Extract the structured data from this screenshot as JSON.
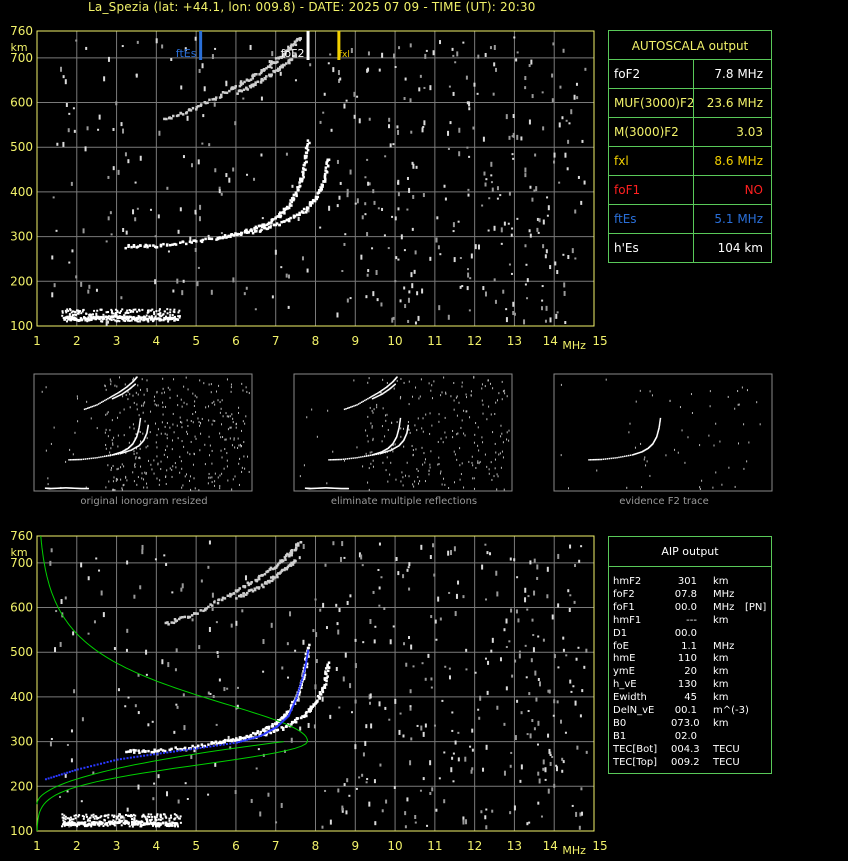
{
  "title": "La_Spezia (lat: +44.1, lon: 009.8) - DATE: 2025 07 09 - TIME (UT): 20:30",
  "colors": {
    "axis": "#f2f26a",
    "grid": "#7a7a7a",
    "box": "#59c959",
    "fte": "#2a6fd8",
    "fof2_marker": "#ffffff",
    "fxl": "#f2d000",
    "fof1": "#ff2020",
    "profile": "#00d000",
    "trace_fit": "#2a38ff"
  },
  "axis_labels": {
    "km": "km",
    "mhz": "MHz"
  },
  "chart_data": [
    {
      "type": "scatter",
      "name": "ionogram",
      "x_ticks": [
        "1",
        "2",
        "3",
        "4",
        "5",
        "6",
        "7",
        "8",
        "9",
        "10",
        "11",
        "12",
        "13",
        "14",
        "15"
      ],
      "y_ticks": [
        "100",
        "200",
        "300",
        "400",
        "500",
        "600",
        "700",
        "760"
      ],
      "xlim": [
        1,
        15
      ],
      "ylim": [
        100,
        760
      ],
      "xlabel": "MHz",
      "ylabel": "km",
      "annotations": [
        {
          "label": "ftEs",
          "x": 5.1
        },
        {
          "label": "foF2",
          "x": 7.8
        },
        {
          "label": "fxl",
          "x": 8.6
        }
      ],
      "traces": [
        {
          "name": "Es",
          "points": [
            [
              1.7,
              120
            ],
            [
              2.0,
              118
            ],
            [
              2.5,
              120
            ],
            [
              3.0,
              122
            ],
            [
              3.5,
              120
            ],
            [
              4.0,
              118
            ],
            [
              4.5,
              118
            ]
          ]
        },
        {
          "name": "F2_o",
          "points": [
            [
              3.2,
              280
            ],
            [
              4.0,
              282
            ],
            [
              5.0,
              292
            ],
            [
              6.0,
              308
            ],
            [
              6.6,
              325
            ],
            [
              7.0,
              345
            ],
            [
              7.3,
              370
            ],
            [
              7.55,
              410
            ],
            [
              7.7,
              460
            ],
            [
              7.8,
              520
            ]
          ]
        },
        {
          "name": "F2_x",
          "points": [
            [
              5.5,
              300
            ],
            [
              6.5,
              315
            ],
            [
              7.2,
              335
            ],
            [
              7.7,
              360
            ],
            [
              8.0,
              390
            ],
            [
              8.2,
              430
            ],
            [
              8.3,
              480
            ]
          ]
        },
        {
          "name": "F2_2hop",
          "points": [
            [
              4.2,
              565
            ],
            [
              5.0,
              590
            ],
            [
              5.8,
              630
            ],
            [
              6.4,
              660
            ],
            [
              6.9,
              690
            ],
            [
              7.3,
              720
            ],
            [
              7.6,
              750
            ]
          ]
        },
        {
          "name": "F2_2hop_x",
          "points": [
            [
              6.0,
              625
            ],
            [
              6.6,
              650
            ],
            [
              7.1,
              680
            ],
            [
              7.5,
              710
            ]
          ]
        }
      ]
    },
    {
      "type": "scatter",
      "name": "ionogram_profile",
      "x_ticks": [
        "1",
        "2",
        "3",
        "4",
        "5",
        "6",
        "7",
        "8",
        "9",
        "10",
        "11",
        "12",
        "13",
        "14",
        "15"
      ],
      "y_ticks": [
        "100",
        "200",
        "300",
        "400",
        "500",
        "600",
        "700",
        "760"
      ],
      "xlim": [
        1,
        15
      ],
      "ylim": [
        100,
        760
      ],
      "xlabel": "MHz",
      "ylabel": "km",
      "profile": {
        "hmF2": 301,
        "foF2": 7.8
      },
      "fit_trace": [
        [
          1.2,
          218
        ],
        [
          2.0,
          240
        ],
        [
          3.0,
          262
        ],
        [
          4.0,
          275
        ],
        [
          5.0,
          287
        ],
        [
          6.0,
          300
        ],
        [
          6.6,
          315
        ],
        [
          7.0,
          335
        ],
        [
          7.3,
          360
        ],
        [
          7.5,
          400
        ],
        [
          7.7,
          460
        ],
        [
          7.8,
          510
        ]
      ]
    }
  ],
  "autoscala": {
    "header": "AUTOSCALA output",
    "rows": [
      {
        "key": "foF2",
        "value": "7.8 MHz",
        "kcolor": "#ffffff",
        "vcolor": "#ffffff"
      },
      {
        "key": "MUF(3000)F2",
        "value": "23.6 MHz",
        "kcolor": "#f2f26a",
        "vcolor": "#f2f26a"
      },
      {
        "key": "M(3000)F2",
        "value": "3.03",
        "kcolor": "#f2f26a",
        "vcolor": "#f2f26a"
      },
      {
        "key": "fxl",
        "value": "8.6 MHz",
        "kcolor": "#f2d000",
        "vcolor": "#f2d000"
      },
      {
        "key": "foF1",
        "value": "NO",
        "kcolor": "#ff2020",
        "vcolor": "#ff2020"
      },
      {
        "key": "ftEs",
        "value": "5.1 MHz",
        "kcolor": "#2a6fd8",
        "vcolor": "#2a6fd8"
      },
      {
        "key": "h'Es",
        "value": "104     km",
        "kcolor": "#ffffff",
        "vcolor": "#ffffff"
      }
    ]
  },
  "thumbs": [
    {
      "caption": "original ionogram resized"
    },
    {
      "caption": "eliminate multiple reflections"
    },
    {
      "caption": "evidence F2 trace"
    }
  ],
  "aip": {
    "header": "AIP output",
    "rows": [
      {
        "k": "hmF2",
        "v": "301",
        "u": "km",
        "x": ""
      },
      {
        "k": "foF2",
        "v": "07.8",
        "u": "MHz",
        "x": ""
      },
      {
        "k": "foF1",
        "v": "00.0",
        "u": "MHz",
        "x": "[PN]"
      },
      {
        "k": "hmF1",
        "v": "---",
        "u": "km",
        "x": ""
      },
      {
        "k": "D1",
        "v": "00.0",
        "u": "",
        "x": ""
      },
      {
        "k": "foE",
        "v": "1.1",
        "u": "MHz",
        "x": ""
      },
      {
        "k": "hmE",
        "v": "110",
        "u": "km",
        "x": ""
      },
      {
        "k": "ymE",
        "v": "20",
        "u": "km",
        "x": ""
      },
      {
        "k": "h_vE",
        "v": "130",
        "u": "km",
        "x": ""
      },
      {
        "k": "Ewidth",
        "v": "45",
        "u": "km",
        "x": ""
      },
      {
        "k": "DelN_vE",
        "v": "00.1",
        "u": "m^(-3)",
        "x": ""
      },
      {
        "k": "B0",
        "v": "073.0",
        "u": "km",
        "x": ""
      },
      {
        "k": "B1",
        "v": "02.0",
        "u": "",
        "x": ""
      },
      {
        "k": "TEC[Bot]",
        "v": "004.3",
        "u": "TECU",
        "x": ""
      },
      {
        "k": "TEC[Top]",
        "v": "009.2",
        "u": "TECU",
        "x": ""
      }
    ]
  }
}
